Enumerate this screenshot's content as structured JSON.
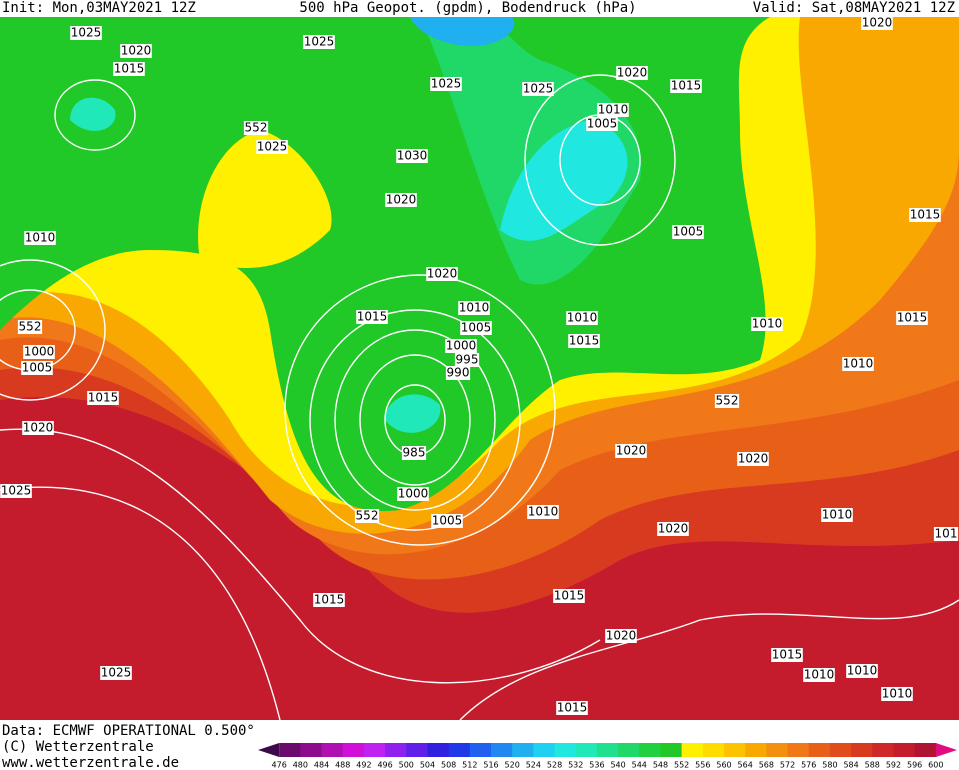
{
  "header": {
    "init": "Init: Mon,03MAY2021 12Z",
    "title": "500 hPa Geopot. (gpdm), Bodendruck (hPa)",
    "valid": "Valid: Sat,08MAY2021 12Z"
  },
  "footer": {
    "source": "Data: ECMWF OPERATIONAL 0.500°",
    "copyright": "(C) Wetterzentrale",
    "url": "www.wetterzentrale.de"
  },
  "contour_labels": [
    "1025",
    "1020",
    "1015",
    "1025",
    "1025",
    "1025",
    "1020",
    "1015",
    "1020",
    "1010",
    "1005",
    "552",
    "1025",
    "1030",
    "1020",
    "1015",
    "1010",
    "1005",
    "1020",
    "1010",
    "1015",
    "1010",
    "1010",
    "1015",
    "552",
    "1005",
    "1000",
    "1000",
    "1015",
    "995",
    "1005",
    "1010",
    "990",
    "1015",
    "552",
    "1020",
    "985",
    "1020",
    "1020",
    "1025",
    "1000",
    "1010",
    "552",
    "1005",
    "1010",
    "1020",
    "101",
    "1015",
    "1015",
    "1020",
    "1015",
    "1025",
    "1010",
    "1010",
    "1010",
    "1015"
  ],
  "colorbar": {
    "levels": [
      476,
      480,
      484,
      488,
      492,
      496,
      500,
      504,
      508,
      512,
      516,
      520,
      524,
      528,
      532,
      536,
      540,
      544,
      548,
      552,
      556,
      560,
      564,
      568,
      572,
      576,
      580,
      584,
      588,
      592,
      596,
      600
    ],
    "colors": [
      "#3c0a4a",
      "#6a0c6e",
      "#8c0c8c",
      "#b010b0",
      "#d010d8",
      "#c020f0",
      "#9020f0",
      "#6020e8",
      "#3020e0",
      "#2038e8",
      "#2060f0",
      "#2088f0",
      "#20b0f0",
      "#20d0f0",
      "#20e8e0",
      "#20e8b8",
      "#20e090",
      "#20d868",
      "#20d040",
      "#20c828",
      "#fff000",
      "#ffdc00",
      "#fcc400",
      "#f8a800",
      "#f49010",
      "#f07818",
      "#e86018",
      "#e04c1c",
      "#d83a20",
      "#d02828",
      "#c41c2c",
      "#b01432",
      "#e00c80"
    ]
  }
}
